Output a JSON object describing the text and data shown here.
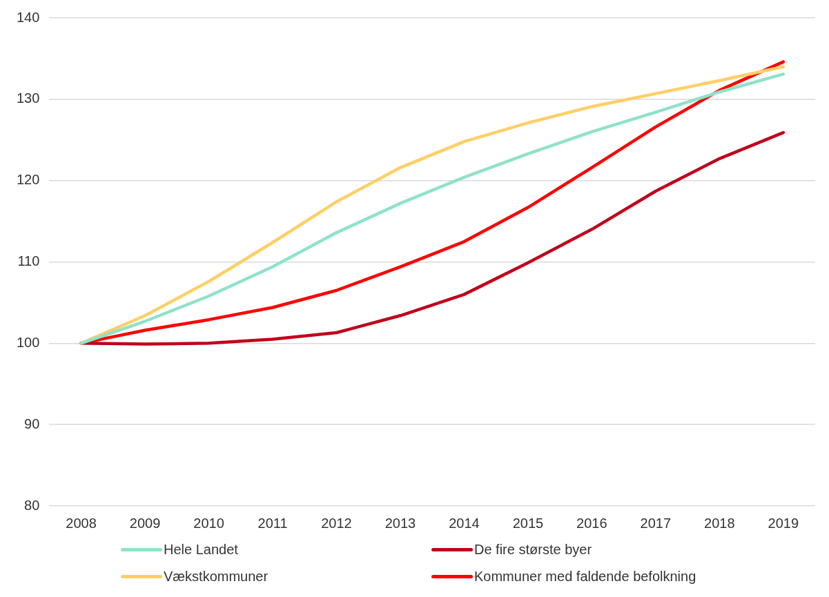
{
  "chart_data": {
    "type": "line",
    "categories": [
      "2008",
      "2009",
      "2010",
      "2011",
      "2012",
      "2013",
      "2014",
      "2015",
      "2016",
      "2017",
      "2018",
      "2019"
    ],
    "series": [
      {
        "name": "Hele Landet",
        "color": "#8fe2c8",
        "values": [
          100,
          102.7,
          105.8,
          109.4,
          113.6,
          117.2,
          120.4,
          123.3,
          126.0,
          128.4,
          130.9,
          133.1
        ]
      },
      {
        "name": "De fire største byer",
        "color": "#c0001a",
        "values": [
          100,
          99.9,
          100.0,
          100.5,
          101.3,
          103.4,
          106.0,
          109.9,
          114.0,
          118.7,
          122.7,
          125.9
        ]
      },
      {
        "name": "Vækstkommuner",
        "color": "#ffcf66",
        "values": [
          100,
          103.4,
          107.6,
          112.4,
          117.4,
          121.6,
          124.8,
          127.1,
          129.1,
          130.7,
          132.3,
          134.0
        ]
      },
      {
        "name": "Kommuner med faldende befolkning",
        "color": "#ff0000",
        "values": [
          100,
          101.6,
          102.9,
          104.4,
          106.5,
          109.4,
          112.5,
          116.7,
          121.6,
          126.6,
          131.1,
          134.6
        ]
      }
    ],
    "ylim": [
      80,
      140
    ],
    "yticks": [
      80,
      90,
      100,
      110,
      120,
      130,
      140
    ],
    "grid": "y",
    "legend": "bottom",
    "marker": "none",
    "line_style": "solid"
  }
}
